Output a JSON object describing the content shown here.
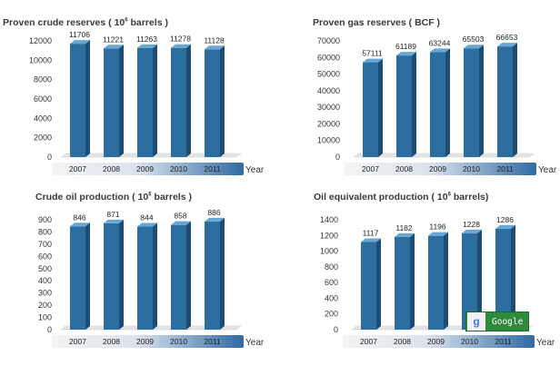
{
  "colors": {
    "bar_front": "#2c6ea0",
    "bar_side": "#1b4d75",
    "bar_top": "#6aa6d4",
    "floor": "#e4e4e4",
    "axis_strip_start": "#f4f4f4",
    "axis_strip_end": "#2f6aa2"
  },
  "chart_data": [
    {
      "type": "bar",
      "title": "Proven crude reserves ( 10",
      "title_superscript": "6",
      "title_suffix": " barrels )",
      "categories": [
        "2007",
        "2008",
        "2009",
        "2010",
        "2011"
      ],
      "values": [
        11706,
        11221,
        11263,
        11278,
        11128
      ],
      "value_labels": [
        "11706",
        "11221",
        "11263",
        "11278",
        "11128"
      ],
      "yticks": [
        "0",
        "2000",
        "4000",
        "6000",
        "8000",
        "10000",
        "12000"
      ],
      "ylim": [
        0,
        12000
      ],
      "xlabel": "Year",
      "ylabel": ""
    },
    {
      "type": "bar",
      "title": "Proven gas reserves ( BCF )",
      "title_superscript": "",
      "title_suffix": "",
      "categories": [
        "2007",
        "2008",
        "2009",
        "2010",
        "2011"
      ],
      "values": [
        57111,
        61189,
        63244,
        65503,
        66653
      ],
      "value_labels": [
        "57111",
        "61189",
        "63244",
        "65503",
        "66653"
      ],
      "yticks": [
        "0",
        "10000",
        "20000",
        "30000",
        "40000",
        "50000",
        "60000",
        "70000"
      ],
      "ylim": [
        0,
        70000
      ],
      "xlabel": "Year",
      "ylabel": ""
    },
    {
      "type": "bar",
      "title": "Crude oil production ( 10",
      "title_superscript": "6",
      "title_suffix": " barrels )",
      "categories": [
        "2007",
        "2008",
        "2009",
        "2010",
        "2011"
      ],
      "values": [
        846,
        871,
        844,
        858,
        886
      ],
      "value_labels": [
        "846",
        "871",
        "844",
        "858",
        "886"
      ],
      "yticks": [
        "0",
        "100",
        "200",
        "300",
        "400",
        "500",
        "600",
        "700",
        "800",
        "900"
      ],
      "ylim": [
        0,
        900
      ],
      "xlabel": "Year",
      "ylabel": ""
    },
    {
      "type": "bar",
      "title": "Oil equivalent production ( 10",
      "title_superscript": "6",
      "title_suffix": " barrels)",
      "categories": [
        "2007",
        "2008",
        "2009",
        "2010",
        "2011"
      ],
      "values": [
        1117,
        1182,
        1196,
        1228,
        1286
      ],
      "value_labels": [
        "1117",
        "1182",
        "1196",
        "1228",
        "1286"
      ],
      "yticks": [
        "0",
        "200",
        "400",
        "600",
        "800",
        "1000",
        "1200",
        "1400"
      ],
      "ylim": [
        0,
        1400
      ],
      "xlabel": "Year",
      "ylabel": ""
    }
  ],
  "badge": {
    "icon_letter": "g",
    "label": "Google"
  }
}
